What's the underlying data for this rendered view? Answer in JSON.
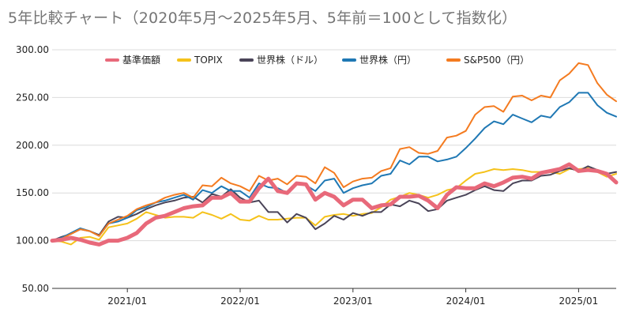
{
  "chart_data": {
    "type": "line",
    "title": "5年比較チャート（2020年5月〜2025年5月、5年前＝100として指数化）",
    "xlabel": "",
    "ylabel": "",
    "ylim": [
      50,
      300
    ],
    "y_ticks": [
      "50.00",
      "100.00",
      "150.00",
      "200.00",
      "250.00",
      "300.00"
    ],
    "x_ticks": [
      "2021/01",
      "2022/01",
      "2023/01",
      "2024/01",
      "2025/01"
    ],
    "x_ticks_index": [
      8,
      20,
      32,
      44,
      56
    ],
    "grid": "horizontal",
    "legend_position": "top",
    "x": [
      "2020/05",
      "2020/06",
      "2020/07",
      "2020/08",
      "2020/09",
      "2020/10",
      "2020/11",
      "2020/12",
      "2021/01",
      "2021/02",
      "2021/03",
      "2021/04",
      "2021/05",
      "2021/06",
      "2021/07",
      "2021/08",
      "2021/09",
      "2021/10",
      "2021/11",
      "2021/12",
      "2022/01",
      "2022/02",
      "2022/03",
      "2022/04",
      "2022/05",
      "2022/06",
      "2022/07",
      "2022/08",
      "2022/09",
      "2022/10",
      "2022/11",
      "2022/12",
      "2023/01",
      "2023/02",
      "2023/03",
      "2023/04",
      "2023/05",
      "2023/06",
      "2023/07",
      "2023/08",
      "2023/09",
      "2023/10",
      "2023/11",
      "2023/12",
      "2024/01",
      "2024/02",
      "2024/03",
      "2024/04",
      "2024/05",
      "2024/06",
      "2024/07",
      "2024/08",
      "2024/09",
      "2024/10",
      "2024/11",
      "2024/12",
      "2025/01",
      "2025/02",
      "2025/03",
      "2025/04",
      "2025/05"
    ],
    "series": [
      {
        "name": "基準価額",
        "color": "#e8697a",
        "width": 5,
        "values": [
          100,
          101,
          103,
          101,
          98,
          96,
          100,
          100,
          103,
          108,
          118,
          124,
          126,
          130,
          134,
          136,
          137,
          145,
          145,
          150,
          141,
          141,
          155,
          165,
          152,
          150,
          160,
          159,
          143,
          150,
          146,
          137,
          143,
          143,
          134,
          137,
          138,
          146,
          146,
          147,
          142,
          134,
          148,
          156,
          155,
          155,
          160,
          157,
          161,
          166,
          167,
          165,
          171,
          173,
          175,
          180,
          173,
          174,
          173,
          170,
          161
        ]
      },
      {
        "name": "TOPIX",
        "color": "#f5c21b",
        "width": 2,
        "values": [
          100,
          99,
          96,
          103,
          104,
          101,
          114,
          116,
          118,
          123,
          130,
          127,
          124,
          125,
          125,
          124,
          130,
          127,
          123,
          128,
          122,
          121,
          126,
          122,
          122,
          123,
          124,
          124,
          116,
          125,
          127,
          128,
          126,
          128,
          129,
          135,
          143,
          146,
          150,
          148,
          145,
          148,
          153,
          155,
          163,
          170,
          172,
          175,
          174,
          175,
          174,
          172,
          172,
          172,
          170,
          175,
          175,
          176,
          172,
          167,
          170
        ]
      },
      {
        "name": "世界株（ドル）",
        "color": "#4a4458",
        "width": 2,
        "values": [
          100,
          104,
          107,
          112,
          110,
          106,
          120,
          125,
          124,
          128,
          133,
          137,
          140,
          142,
          145,
          146,
          140,
          149,
          146,
          154,
          145,
          140,
          142,
          130,
          130,
          119,
          128,
          124,
          112,
          118,
          126,
          122,
          129,
          126,
          130,
          130,
          138,
          136,
          142,
          139,
          131,
          133,
          142,
          145,
          148,
          153,
          157,
          153,
          152,
          160,
          163,
          163,
          168,
          169,
          173,
          176,
          173,
          178,
          174,
          170,
          172
        ]
      },
      {
        "name": "世界株（円）",
        "color": "#1f78b4",
        "width": 2,
        "values": [
          100,
          103,
          108,
          113,
          110,
          105,
          118,
          120,
          124,
          132,
          135,
          140,
          142,
          145,
          148,
          143,
          153,
          150,
          157,
          152,
          152,
          145,
          160,
          156,
          155,
          150,
          160,
          158,
          152,
          163,
          165,
          150,
          155,
          158,
          160,
          168,
          170,
          184,
          180,
          188,
          188,
          183,
          185,
          188,
          197,
          207,
          218,
          225,
          222,
          232,
          228,
          224,
          231,
          229,
          240,
          245,
          255,
          255,
          242,
          234,
          230
        ]
      },
      {
        "name": "S&P500（円）",
        "color": "#f47b20",
        "width": 2,
        "values": [
          100,
          102,
          107,
          112,
          110,
          105,
          118,
          122,
          126,
          133,
          137,
          140,
          145,
          148,
          150,
          145,
          158,
          157,
          166,
          160,
          157,
          152,
          168,
          163,
          165,
          159,
          168,
          167,
          160,
          177,
          171,
          156,
          162,
          165,
          166,
          173,
          176,
          196,
          198,
          192,
          191,
          194,
          208,
          210,
          215,
          232,
          240,
          241,
          235,
          251,
          252,
          247,
          252,
          250,
          268,
          275,
          286,
          284,
          265,
          253,
          246
        ]
      }
    ]
  }
}
